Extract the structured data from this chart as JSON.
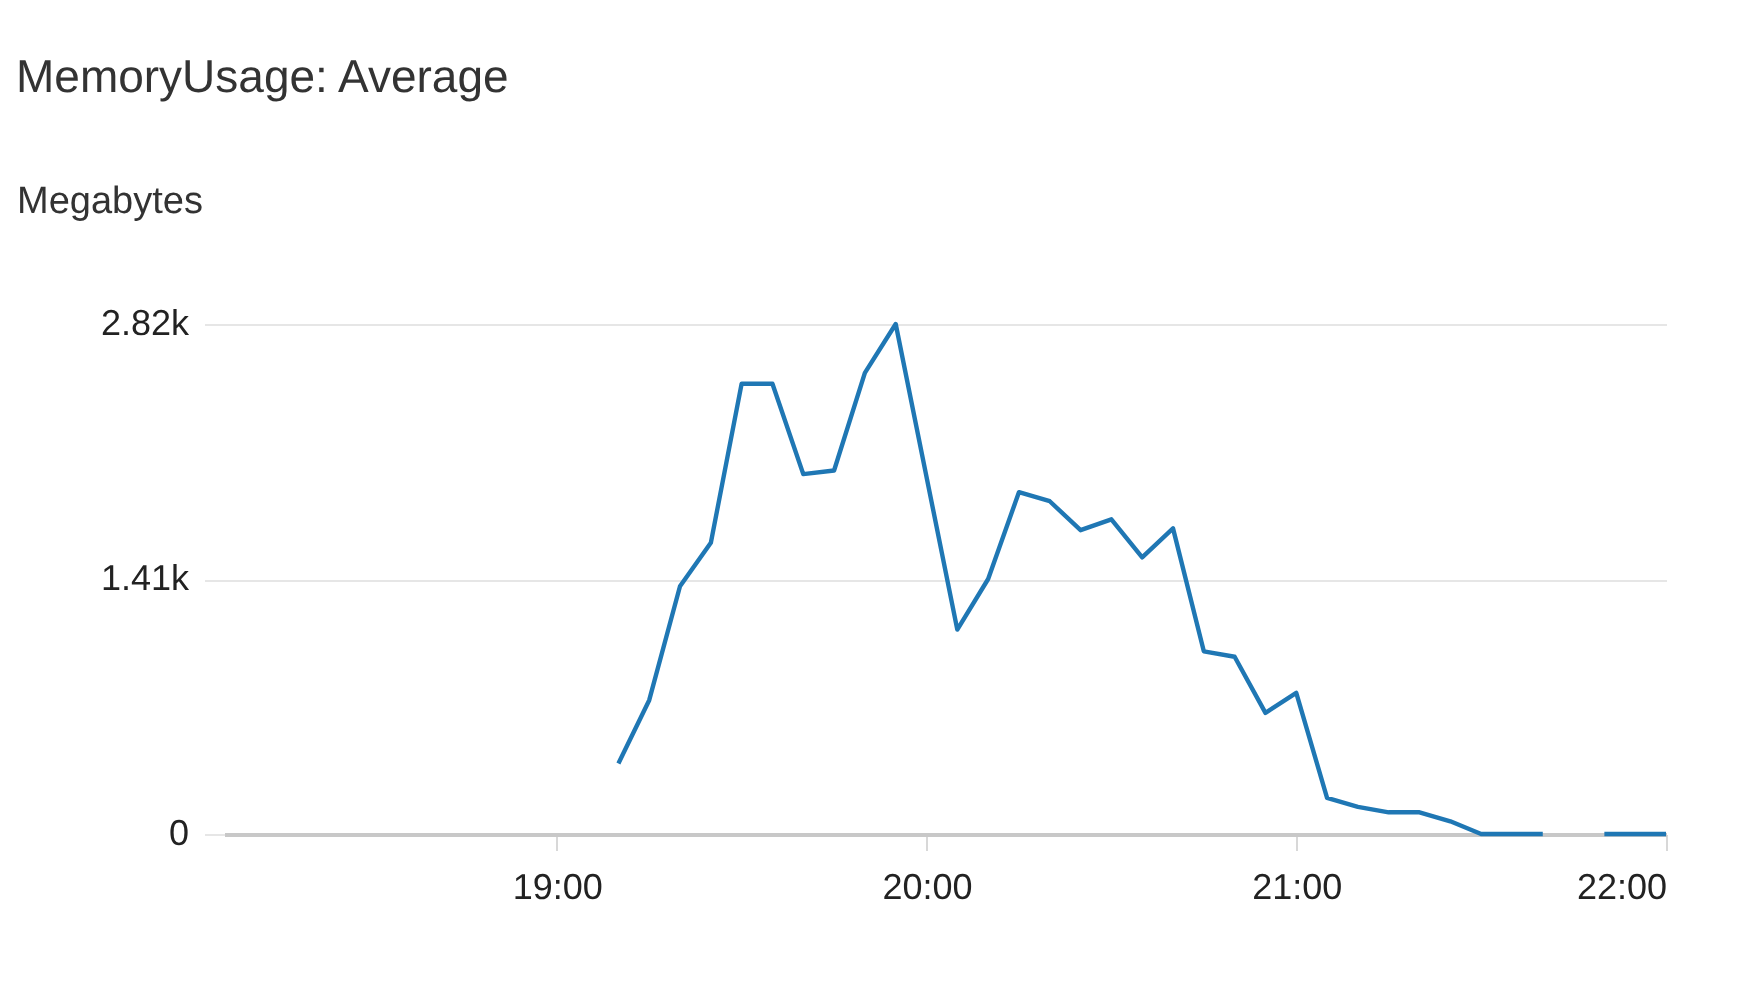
{
  "chart_data": {
    "type": "line",
    "title": "MemoryUsage: Average",
    "ylabel": "Megabytes",
    "x": [
      19.1667,
      19.25,
      19.3333,
      19.4167,
      19.5,
      19.5833,
      19.6667,
      19.75,
      19.8333,
      19.9167,
      20.0833,
      20.1667,
      20.25,
      20.3333,
      20.4167,
      20.5,
      20.5833,
      20.6667,
      20.75,
      20.8333,
      20.9167,
      21,
      21.0833,
      21.1667,
      21.25,
      21.3333,
      21.4167,
      21.5,
      21.5833,
      21.6667,
      21.75,
      21.8333,
      21.9167,
      22
    ],
    "series": [
      {
        "color": "#1f77b4",
        "values": [
          390,
          740,
          1370,
          1610,
          2490,
          2490,
          1990,
          2010,
          2550,
          2820,
          1130,
          1410,
          1890,
          1840,
          1680,
          1740,
          1530,
          1690,
          1010,
          980,
          670,
          780,
          200,
          150,
          120,
          120,
          70,
          0,
          0,
          0,
          null,
          0,
          0,
          0
        ]
      }
    ],
    "xlim": [
      18.1,
      22
    ],
    "xticks": [
      {
        "value": 19,
        "label": "19:00"
      },
      {
        "value": 20,
        "label": "20:00"
      },
      {
        "value": 21,
        "label": "21:00"
      },
      {
        "value": 22,
        "label": "22:00"
      }
    ],
    "ylim": [
      0,
      2820
    ],
    "yticks": [
      0,
      {
        "value": 1410,
        "label": "1.41k"
      },
      {
        "value": 2820,
        "label": "2.82k"
      }
    ],
    "grid": "y",
    "legend": false,
    "marker": "none",
    "line_style": "solid"
  }
}
